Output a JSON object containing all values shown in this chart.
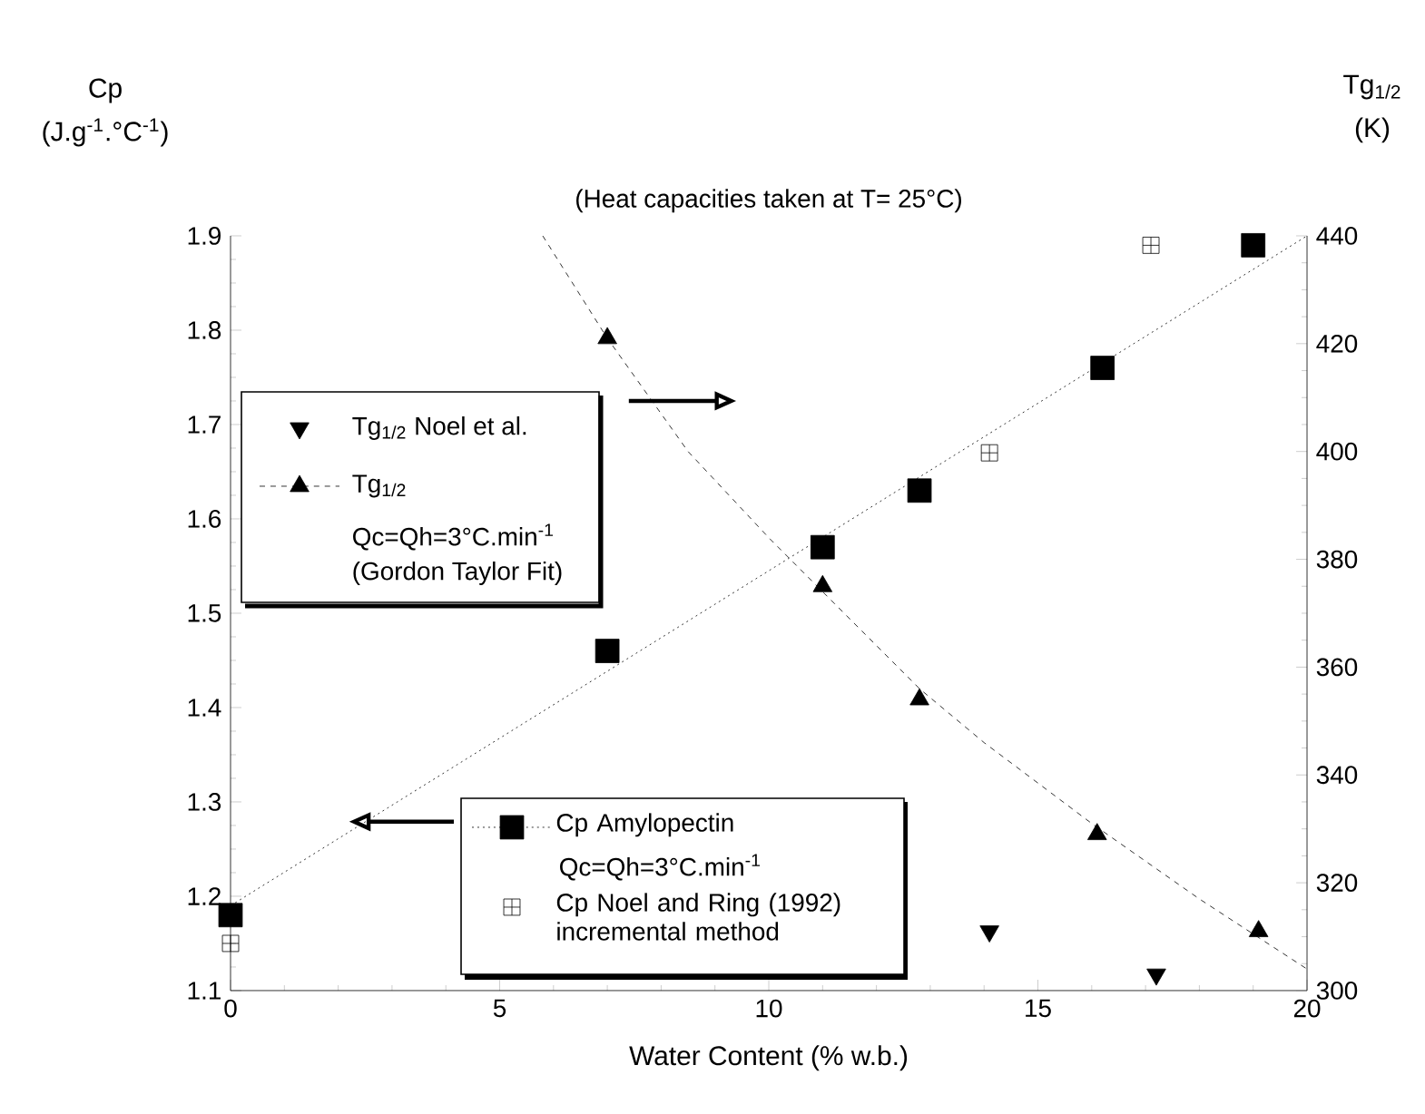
{
  "chart_data": {
    "type": "scatter",
    "title": "(Heat capacities taken at T= 25°C)",
    "xlabel": "Water Content (% w.b.)",
    "ylabel": "Cp (J.g$^{-1}$.°C$^{-1}$)",
    "y2label": "Tg$_{1/2}$ (K)",
    "xlim": [
      0,
      20
    ],
    "xticks": [
      0,
      5,
      10,
      15,
      20
    ],
    "ylim": [
      1.1,
      1.9
    ],
    "yticks": [
      1.1,
      1.2,
      1.3,
      1.4,
      1.5,
      1.6,
      1.7,
      1.8,
      1.9
    ],
    "y2lim": [
      300,
      440
    ],
    "y2ticks": [
      300,
      320,
      340,
      360,
      380,
      400,
      420,
      440
    ],
    "grid": false,
    "legend": "left",
    "annotations": [
      "Qc=Qh=3°C.min$^{-1}$",
      "(Gordon Taylor Fit)",
      "Qc=Qh=3°C.min$^{-1}$"
    ],
    "series": [
      {
        "name": "Tg$_{1/2}$ Noel et al.",
        "axis": "y2",
        "marker": "triangle_down",
        "color": "#000000",
        "x": [
          14.1,
          17.2
        ],
        "values": [
          311,
          303
        ]
      },
      {
        "name": "Tg$_{1/2}$",
        "axis": "y2",
        "marker": "triangle",
        "line_style": "dashed",
        "color": "#000000",
        "x": [
          7,
          11,
          12.8,
          16.1,
          19.1
        ],
        "values": [
          421,
          375,
          354,
          329,
          311
        ]
      },
      {
        "type": "line",
        "axis": "y2",
        "line_style": "dashed",
        "marker": "none",
        "color": "#000000",
        "x": [
          5.8,
          7,
          8.5,
          10,
          11,
          12.8,
          14,
          16,
          18,
          20
        ],
        "values": [
          440,
          421,
          400,
          384,
          374,
          356,
          346,
          331,
          317,
          304
        ]
      },
      {
        "name": "Cp Amylopectin",
        "marker": "square",
        "line_style": "dotted",
        "color": "#000000",
        "x": [
          0,
          7,
          11,
          12.8,
          16.2,
          19
        ],
        "values": [
          1.18,
          1.46,
          1.57,
          1.63,
          1.76,
          1.89
        ]
      },
      {
        "name": "Cp  Noel and Ring (1992) incremental method",
        "marker": "cross",
        "color": "#000000",
        "x": [
          0,
          14.1,
          17.1
        ],
        "values": [
          1.15,
          1.67,
          1.89
        ]
      },
      {
        "type": "line",
        "line_style": "dotted",
        "marker": "none",
        "color": "#000000",
        "x": [
          0,
          20
        ],
        "values": [
          1.19,
          1.9
        ]
      }
    ]
  }
}
